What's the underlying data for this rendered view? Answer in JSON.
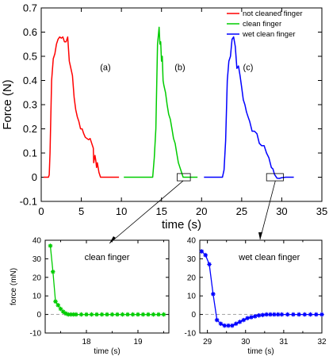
{
  "chart_data": [
    {
      "type": "line",
      "xlabel": "time (s)",
      "ylabel": "Force (N)",
      "xlim": [
        0,
        35
      ],
      "ylim": [
        -0.1,
        0.7
      ],
      "xticks": [
        "0",
        "5",
        "10",
        "15",
        "20",
        "25",
        "30",
        "35"
      ],
      "yticks": [
        "-0.1",
        "0",
        "0.1",
        "0.2",
        "0.3",
        "0.4",
        "0.5",
        "0.6",
        "0.7"
      ],
      "legend": "top-right",
      "annotations": [
        "(a)",
        "(b)",
        "(c)"
      ],
      "series": [
        {
          "name": "not cleaned finger",
          "color": "#ff0000",
          "x": [
            0.3,
            0.9,
            1.0,
            1.1,
            1.3,
            1.5,
            1.7,
            1.9,
            2.1,
            2.3,
            2.5,
            2.7,
            2.9,
            3.1,
            3.3,
            3.5,
            3.7,
            3.9,
            4.1,
            4.3,
            4.5,
            4.7,
            4.9,
            5.1,
            5.3,
            5.5,
            5.7,
            5.9,
            6.1,
            6.3,
            6.5,
            6.55,
            6.7,
            6.8,
            6.9,
            7.0,
            7.1,
            7.2,
            7.4,
            7.6,
            8.0,
            9.7
          ],
          "y": [
            0.0,
            0.0,
            0.01,
            0.1,
            0.4,
            0.49,
            0.51,
            0.55,
            0.57,
            0.58,
            0.575,
            0.58,
            0.56,
            0.56,
            0.58,
            0.48,
            0.45,
            0.42,
            0.33,
            0.28,
            0.25,
            0.23,
            0.2,
            0.2,
            0.18,
            0.165,
            0.16,
            0.155,
            0.16,
            0.14,
            0.12,
            0.06,
            0.09,
            0.07,
            0.04,
            0.06,
            0.04,
            0.02,
            0.0,
            0.0,
            0.0,
            0.0
          ]
        },
        {
          "name": "clean finger",
          "color": "#00cc00",
          "x": [
            10.3,
            13.9,
            14.1,
            14.3,
            14.5,
            14.7,
            14.8,
            14.9,
            15.0,
            15.1,
            15.2,
            15.3,
            15.5,
            15.7,
            15.9,
            16.1,
            16.3,
            16.5,
            16.7,
            16.9,
            17.1,
            17.3,
            17.5,
            17.7,
            17.9,
            19.5
          ],
          "y": [
            0.0,
            0.0,
            0.08,
            0.2,
            0.55,
            0.62,
            0.55,
            0.56,
            0.48,
            0.5,
            0.4,
            0.38,
            0.35,
            0.3,
            0.26,
            0.24,
            0.2,
            0.16,
            0.14,
            0.1,
            0.06,
            0.04,
            0.02,
            0.0,
            0.0,
            0.0
          ]
        },
        {
          "name": "wet clean finger",
          "color": "#0000ff",
          "x": [
            20.3,
            22.6,
            22.8,
            23.0,
            23.2,
            23.4,
            23.6,
            23.8,
            24.0,
            24.2,
            24.4,
            24.6,
            24.8,
            25.0,
            25.2,
            25.4,
            25.6,
            25.8,
            26.0,
            26.3,
            26.6,
            26.9,
            27.2,
            27.5,
            27.8,
            28.1,
            28.4,
            28.7,
            28.9,
            29.1,
            29.4,
            29.7,
            30.0,
            30.5,
            31.0,
            31.5
          ],
          "y": [
            0.0,
            0.0,
            0.03,
            0.15,
            0.4,
            0.48,
            0.5,
            0.57,
            0.58,
            0.54,
            0.45,
            0.46,
            0.42,
            0.37,
            0.32,
            0.3,
            0.27,
            0.25,
            0.23,
            0.19,
            0.19,
            0.18,
            0.14,
            0.13,
            0.13,
            0.1,
            0.08,
            0.04,
            0.034,
            0.011,
            -0.004,
            -0.005,
            -0.002,
            0.0,
            0.0,
            0.0
          ]
        }
      ]
    },
    {
      "type": "line",
      "title": "clean finger",
      "xlabel": "time (s)",
      "ylabel": "force  (mN)",
      "xlim": [
        17.2,
        19.6
      ],
      "ylim": [
        -10,
        40
      ],
      "xticks": [
        "18",
        "19"
      ],
      "yticks": [
        "-10",
        "0",
        "10",
        "20",
        "30",
        "40"
      ],
      "series": [
        {
          "color": "#00cc00",
          "marker": "star",
          "x": [
            17.3,
            17.35,
            17.4,
            17.45,
            17.5,
            17.55,
            17.6,
            17.65,
            17.7,
            17.75,
            17.8,
            17.9,
            18.0,
            18.1,
            18.2,
            18.3,
            18.4,
            18.5,
            18.6,
            18.7,
            18.8,
            18.9,
            19.0,
            19.1,
            19.2,
            19.3,
            19.4,
            19.5
          ],
          "y": [
            37,
            23,
            7,
            5,
            3,
            1.5,
            0.5,
            0,
            0,
            0,
            0,
            0,
            0,
            0,
            0,
            0,
            0,
            0,
            0,
            0,
            0,
            0,
            0,
            0,
            0,
            0,
            0,
            0
          ]
        }
      ]
    },
    {
      "type": "line",
      "title": "wet clean finger",
      "xlabel": "time (s)",
      "ylabel": "",
      "xlim": [
        28.8,
        32
      ],
      "ylim": [
        -10,
        40
      ],
      "xticks": [
        "29",
        "30",
        "31",
        "32"
      ],
      "yticks": [
        "-10",
        "0",
        "10",
        "20",
        "30",
        "40"
      ],
      "series": [
        {
          "color": "#0000ff",
          "marker": "star",
          "x": [
            28.85,
            28.95,
            29.05,
            29.15,
            29.25,
            29.35,
            29.45,
            29.55,
            29.65,
            29.75,
            29.85,
            29.95,
            30.05,
            30.15,
            30.25,
            30.35,
            30.45,
            30.55,
            30.65,
            30.75,
            30.85,
            30.95,
            31.1,
            31.25,
            31.4,
            31.55,
            31.7,
            31.85,
            32.0
          ],
          "y": [
            34,
            32,
            27,
            11,
            -3,
            -5,
            -6,
            -6,
            -6,
            -5,
            -4,
            -3,
            -2,
            -1.5,
            -1,
            -0.5,
            -0.3,
            0,
            0,
            0,
            0,
            0,
            0,
            0,
            0,
            0,
            0,
            0,
            0
          ]
        }
      ]
    }
  ]
}
